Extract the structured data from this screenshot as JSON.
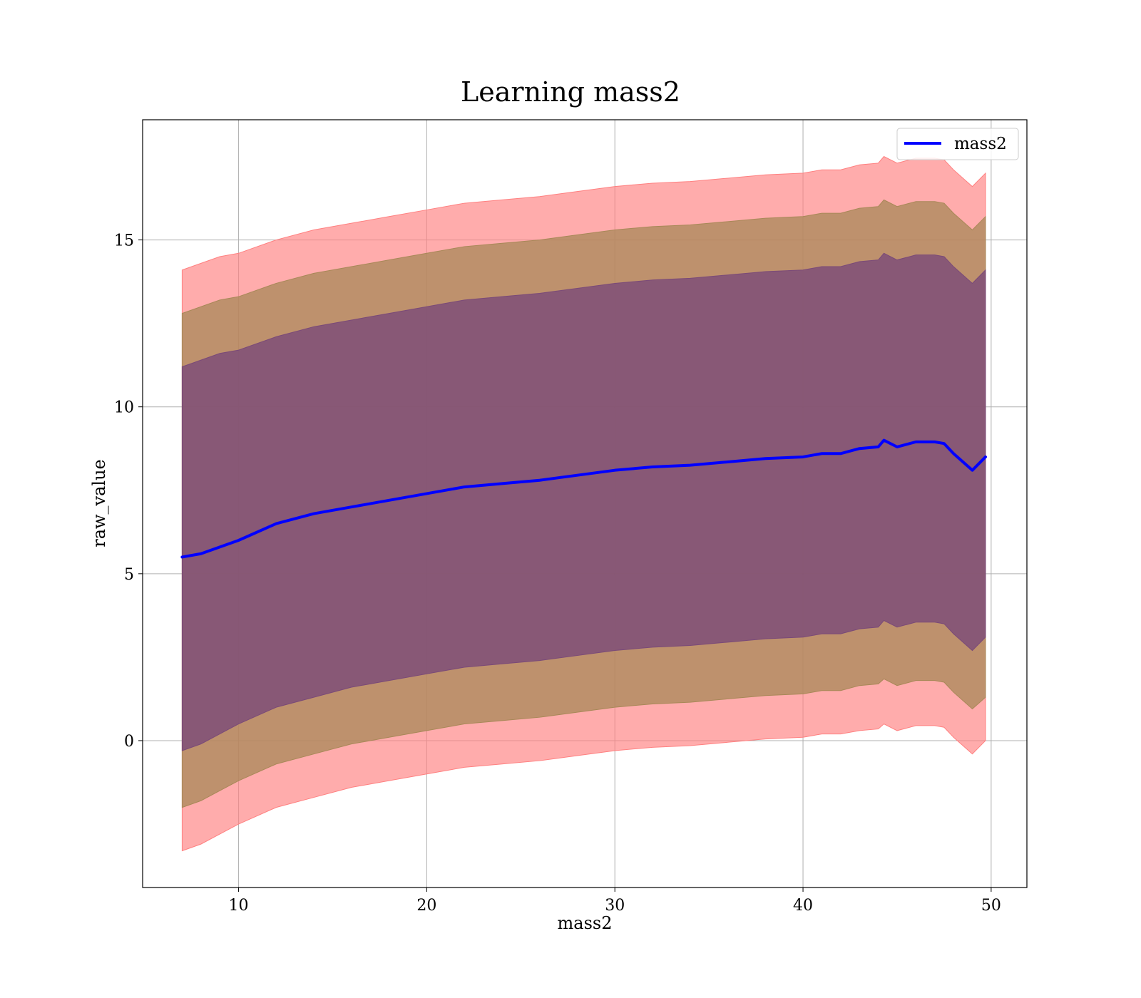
{
  "chart_data": {
    "type": "line",
    "title": "Learning mass2",
    "xlabel": "mass2",
    "ylabel": "raw_value",
    "xlim": [
      4.9,
      51.9
    ],
    "ylim": [
      -4.4,
      18.6
    ],
    "xticks": [
      10,
      20,
      30,
      40,
      50
    ],
    "yticks": [
      0,
      5,
      10,
      15
    ],
    "grid": true,
    "legend": {
      "position": "top-right",
      "entries": [
        "mass2"
      ]
    },
    "colors": {
      "mean_line": "#0000ff",
      "band_outer": "#ff8080",
      "band_middle": "#a88858",
      "band_inner": "#7a4a78",
      "grid": "#b0b0b0"
    },
    "series": [
      {
        "name": "mass2",
        "x": [
          7,
          8,
          9,
          10,
          12,
          14,
          16,
          18,
          20,
          22,
          24,
          26,
          28,
          30,
          32,
          34,
          36,
          38,
          40,
          41,
          42,
          43,
          44,
          44.3,
          45,
          46,
          47,
          47.5,
          48,
          49,
          49.7
        ],
        "values": [
          5.5,
          5.6,
          5.8,
          6.0,
          6.5,
          6.8,
          7.0,
          7.2,
          7.4,
          7.6,
          7.7,
          7.8,
          7.95,
          8.1,
          8.2,
          8.25,
          8.35,
          8.45,
          8.5,
          8.6,
          8.6,
          8.75,
          8.8,
          9.0,
          8.8,
          8.95,
          8.95,
          8.9,
          8.6,
          8.1,
          8.5
        ]
      }
    ],
    "bands": [
      {
        "x": [
          7,
          8,
          9,
          10,
          12,
          14,
          16,
          18,
          20,
          22,
          24,
          26,
          28,
          30,
          32,
          34,
          36,
          38,
          40,
          41,
          42,
          43,
          44,
          44.3,
          45,
          46,
          47,
          47.5,
          48,
          49,
          49.7
        ],
        "lower": [
          -3.3,
          -3.1,
          -2.8,
          -2.5,
          -2.0,
          -1.7,
          -1.4,
          -1.2,
          -1.0,
          -0.8,
          -0.7,
          -0.6,
          -0.45,
          -0.3,
          -0.2,
          -0.15,
          -0.05,
          0.05,
          0.1,
          0.2,
          0.2,
          0.3,
          0.35,
          0.5,
          0.3,
          0.45,
          0.45,
          0.4,
          0.1,
          -0.4,
          0.0
        ],
        "upper": [
          14.1,
          14.3,
          14.5,
          14.6,
          15.0,
          15.3,
          15.5,
          15.7,
          15.9,
          16.1,
          16.2,
          16.3,
          16.45,
          16.6,
          16.7,
          16.75,
          16.85,
          16.95,
          17.0,
          17.1,
          17.1,
          17.25,
          17.3,
          17.5,
          17.3,
          17.45,
          17.45,
          17.4,
          17.1,
          16.6,
          17.0
        ]
      },
      {
        "x": [
          7,
          8,
          9,
          10,
          12,
          14,
          16,
          18,
          20,
          22,
          24,
          26,
          28,
          30,
          32,
          34,
          36,
          38,
          40,
          41,
          42,
          43,
          44,
          44.3,
          45,
          46,
          47,
          47.5,
          48,
          49,
          49.7
        ],
        "lower": [
          -2.0,
          -1.8,
          -1.5,
          -1.2,
          -0.7,
          -0.4,
          -0.1,
          0.1,
          0.3,
          0.5,
          0.6,
          0.7,
          0.85,
          1.0,
          1.1,
          1.15,
          1.25,
          1.35,
          1.4,
          1.5,
          1.5,
          1.65,
          1.7,
          1.85,
          1.65,
          1.8,
          1.8,
          1.75,
          1.45,
          0.95,
          1.3
        ],
        "upper": [
          12.8,
          13.0,
          13.2,
          13.3,
          13.7,
          14.0,
          14.2,
          14.4,
          14.6,
          14.8,
          14.9,
          15.0,
          15.15,
          15.3,
          15.4,
          15.45,
          15.55,
          15.65,
          15.7,
          15.8,
          15.8,
          15.95,
          16.0,
          16.2,
          16.0,
          16.15,
          16.15,
          16.1,
          15.8,
          15.3,
          15.7
        ]
      },
      {
        "x": [
          7,
          8,
          9,
          10,
          12,
          14,
          16,
          18,
          20,
          22,
          24,
          26,
          28,
          30,
          32,
          34,
          36,
          38,
          40,
          41,
          42,
          43,
          44,
          44.3,
          45,
          46,
          47,
          47.5,
          48,
          49,
          49.7
        ],
        "lower": [
          -0.3,
          -0.1,
          0.2,
          0.5,
          1.0,
          1.3,
          1.6,
          1.8,
          2.0,
          2.2,
          2.3,
          2.4,
          2.55,
          2.7,
          2.8,
          2.85,
          2.95,
          3.05,
          3.1,
          3.2,
          3.2,
          3.35,
          3.4,
          3.6,
          3.4,
          3.55,
          3.55,
          3.5,
          3.2,
          2.7,
          3.1
        ],
        "upper": [
          11.2,
          11.4,
          11.6,
          11.7,
          12.1,
          12.4,
          12.6,
          12.8,
          13.0,
          13.2,
          13.3,
          13.4,
          13.55,
          13.7,
          13.8,
          13.85,
          13.95,
          14.05,
          14.1,
          14.2,
          14.2,
          14.35,
          14.4,
          14.6,
          14.4,
          14.55,
          14.55,
          14.5,
          14.2,
          13.7,
          14.1
        ]
      }
    ]
  }
}
